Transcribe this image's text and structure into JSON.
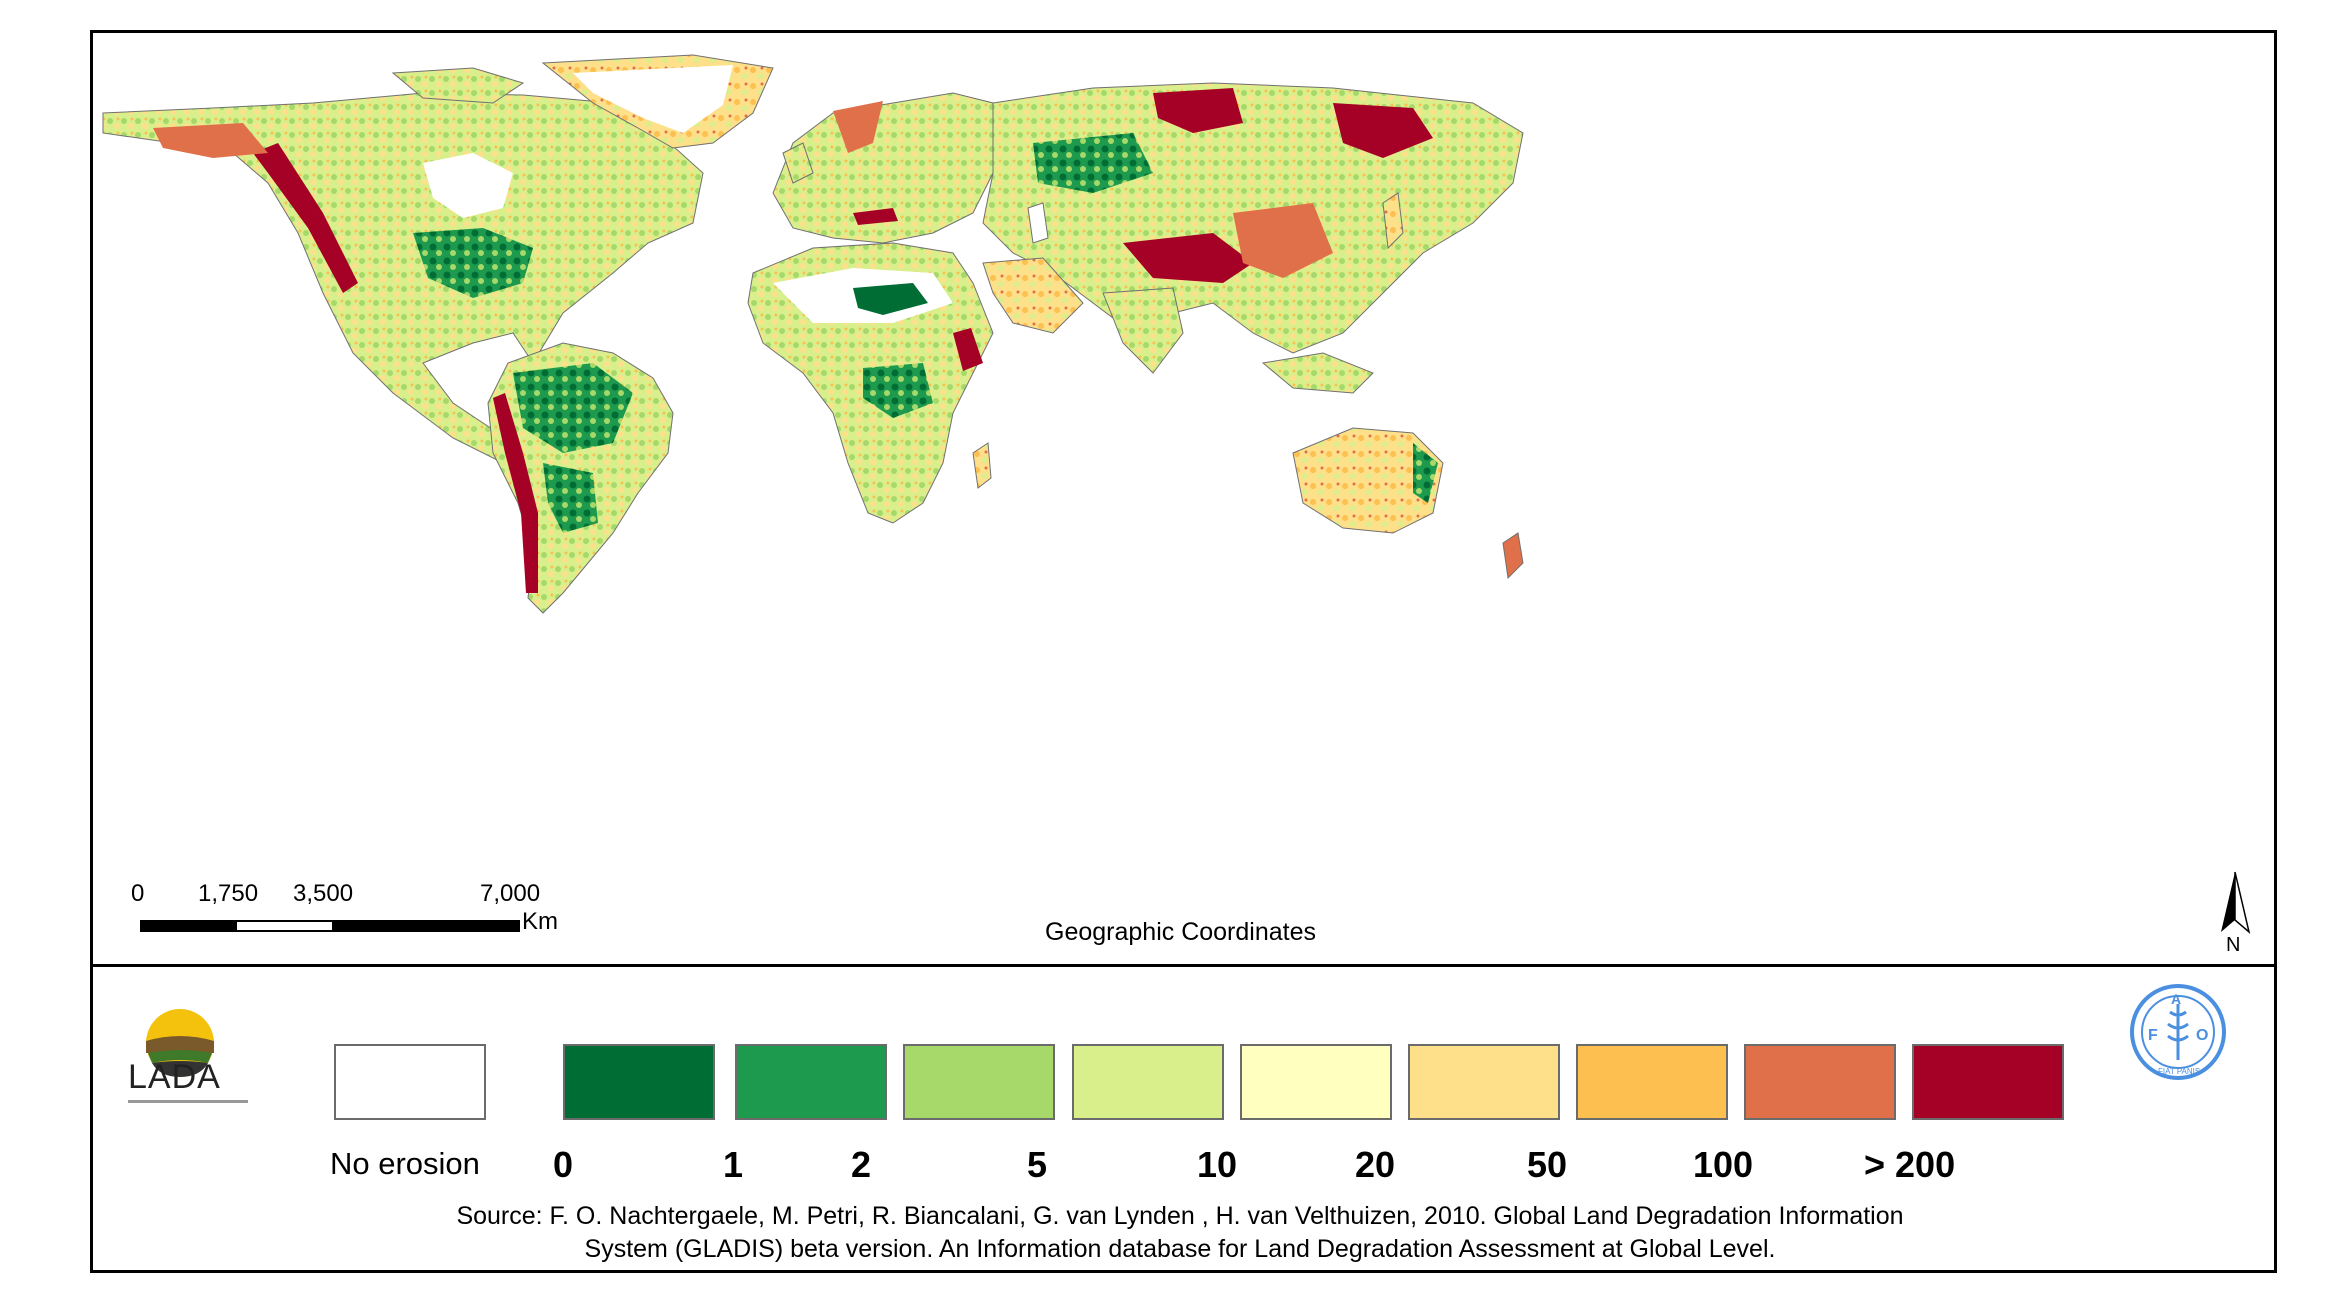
{
  "map": {
    "title_caption": "Geographic Coordinates",
    "north_label": "N",
    "colors": {
      "ocean": "#ffffff",
      "no_erosion": "#ffffff",
      "class_0_1": "#006d35",
      "class_1_2": "#1d9a4d",
      "class_2_5": "#a6d96a",
      "class_5_10": "#d9ef8b",
      "class_10_20": "#ffffbf",
      "class_20_50": "#fee08b",
      "class_50_100": "#fdbf4f",
      "class_100_200": "#e0704a",
      "class_gt_200": "#a50026",
      "border": "#707070"
    }
  },
  "scale_bar": {
    "ticks": [
      "0",
      "1,750",
      "3,500",
      "7,000"
    ],
    "unit": "Km"
  },
  "legend": {
    "no_erosion": {
      "label": "No erosion",
      "color": "#ffffff"
    },
    "classes": [
      {
        "color": "#006d35"
      },
      {
        "color": "#1d9a4d"
      },
      {
        "color": "#a6d96a"
      },
      {
        "color": "#d9ef8b"
      },
      {
        "color": "#ffffbf"
      },
      {
        "color": "#fee08b"
      },
      {
        "color": "#fdbf4f"
      },
      {
        "color": "#e0704a"
      },
      {
        "color": "#a50026"
      }
    ],
    "breaks": [
      "0",
      "1",
      "2",
      "5",
      "10",
      "20",
      "50",
      "100",
      "> 200"
    ]
  },
  "logos": {
    "lada": "LADA",
    "fao_motto": "FIAT PANIS"
  },
  "source": {
    "line1": "Source: F. O. Nachtergaele, M. Petri, R. Biancalani, G. van Lynden , H. van Velthuizen, 2010. Global Land Degradation Information",
    "line2": "System (GLADIS) beta version. An Information database for Land Degradation Assessment at Global Level."
  }
}
